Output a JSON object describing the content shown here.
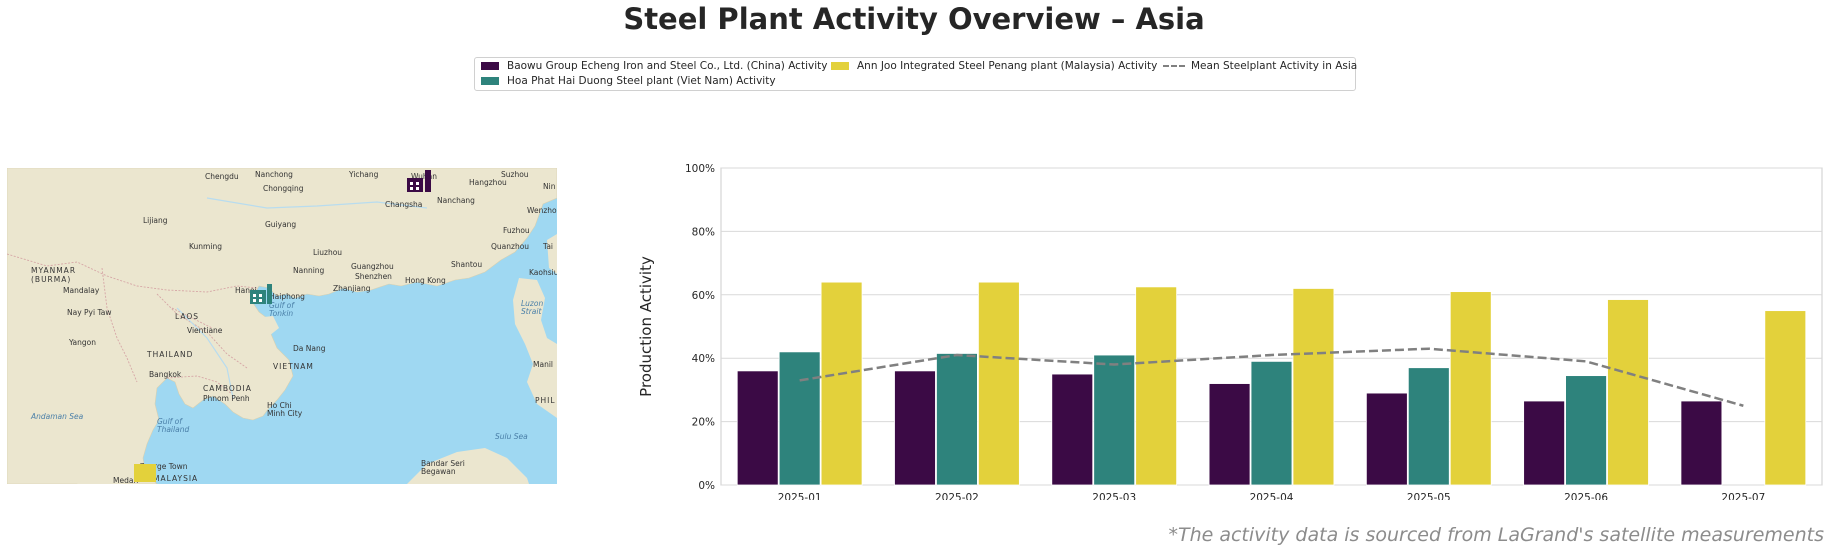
{
  "title": "Steel Plant Activity Overview – Asia",
  "footnote": "*The activity data is sourced from LaGrand's satellite measurements",
  "legend": {
    "items": [
      {
        "label": "Baowu Group Echeng Iron and Steel Co., Ltd. (China) Activity",
        "color": "#3b0a45",
        "kind": "bar"
      },
      {
        "label": "Hoa Phat Hai Duong Steel plant (Viet Nam) Activity",
        "color": "#2e837c",
        "kind": "bar"
      },
      {
        "label": "Ann Joo Integrated Steel Penang plant (Malaysia) Activity",
        "color": "#e3d13b",
        "kind": "bar"
      },
      {
        "label": "Mean Steelplant Activity in Asia",
        "color": "#808080",
        "kind": "dashed-line"
      }
    ]
  },
  "map": {
    "colors": {
      "land": "#ebe6cf",
      "sea": "#9fd8f2",
      "border": "#d6a6a6",
      "river": "#b8dcef"
    },
    "labels": [
      {
        "text": "Chengdu"
      },
      {
        "text": "Nanchong"
      },
      {
        "text": "Yichang"
      },
      {
        "text": "Changsha"
      },
      {
        "text": "Hangzhou"
      },
      {
        "text": "Suzhou"
      },
      {
        "text": "Nanchang"
      },
      {
        "text": "Chongqing"
      },
      {
        "text": "Lijiang"
      },
      {
        "text": "Guiyang"
      },
      {
        "text": "Kunming"
      },
      {
        "text": "Fuzhou"
      },
      {
        "text": "Quanzhou"
      },
      {
        "text": "Liuzhou"
      },
      {
        "text": "Guangzhou"
      },
      {
        "text": "Shenzhen"
      },
      {
        "text": "Shantou"
      },
      {
        "text": "Hong Kong"
      },
      {
        "text": "Kaohsiu"
      },
      {
        "text": "Nanning"
      },
      {
        "text": "Zhanjiang"
      },
      {
        "text": "Hanoi"
      },
      {
        "text": "Haiphong"
      },
      {
        "text": "Gulf of Tonkin"
      },
      {
        "text": "MYANMAR (BURMA)"
      },
      {
        "text": "Mandalay"
      },
      {
        "text": "Nay Pyi Taw"
      },
      {
        "text": "LAOS"
      },
      {
        "text": "Vientiane"
      },
      {
        "text": "Yangon"
      },
      {
        "text": "THAILAND"
      },
      {
        "text": "Da Nang"
      },
      {
        "text": "Bangkok"
      },
      {
        "text": "VIETNAM"
      },
      {
        "text": "CAMBODIA"
      },
      {
        "text": "Phnom Penh"
      },
      {
        "text": "Ho Chi Minh City"
      },
      {
        "text": "Andaman Sea"
      },
      {
        "text": "Gulf of Thailand"
      },
      {
        "text": "Luzon Strait"
      },
      {
        "text": "Manil"
      },
      {
        "text": "PHIL"
      },
      {
        "text": "Sulu Sea"
      },
      {
        "text": "Bandar Seri Begawan"
      },
      {
        "text": "George Town"
      },
      {
        "text": "MALAYSIA"
      },
      {
        "text": "Medan"
      },
      {
        "text": "Tai"
      },
      {
        "text": "Nin"
      },
      {
        "text": "Wenzhou"
      },
      {
        "text": "Wuhan"
      }
    ],
    "markers": [
      {
        "name": "Baowu Group Echeng",
        "color": "#3b0a45"
      },
      {
        "name": "Hoa Phat Hai Duong",
        "color": "#2e837c"
      },
      {
        "name": "Ann Joo Penang",
        "color": "#e3d13b"
      }
    ]
  },
  "chart_data": {
    "type": "bar",
    "categories": [
      "2025-01",
      "2025-02",
      "2025-03",
      "2025-04",
      "2025-05",
      "2025-06",
      "2025-07"
    ],
    "series": [
      {
        "name": "Baowu Group Echeng Iron and Steel Co., Ltd. (China) Activity",
        "color": "#3b0a45",
        "values": [
          36,
          36,
          35,
          32,
          29,
          26.5,
          26.5
        ]
      },
      {
        "name": "Hoa Phat Hai Duong Steel plant (Viet Nam) Activity",
        "color": "#2e837c",
        "values": [
          42,
          41.5,
          41,
          39,
          37,
          34.5,
          null
        ]
      },
      {
        "name": "Ann Joo Integrated Steel Penang plant (Malaysia) Activity",
        "color": "#e3d13b",
        "values": [
          64,
          64,
          62.5,
          62,
          61,
          58.5,
          55
        ]
      }
    ],
    "line": {
      "name": "Mean Steelplant Activity in Asia",
      "color": "#808080",
      "values": [
        33,
        41,
        38,
        41,
        43,
        39,
        25
      ]
    },
    "ylabel": "Production Activity",
    "xlabel": "",
    "ylim": [
      0,
      100
    ],
    "yticks": [
      0,
      20,
      40,
      60,
      80,
      100
    ],
    "ytick_labels": [
      "0%",
      "20%",
      "40%",
      "60%",
      "80%",
      "100%"
    ],
    "grid": true,
    "legend_position": "top-center"
  }
}
